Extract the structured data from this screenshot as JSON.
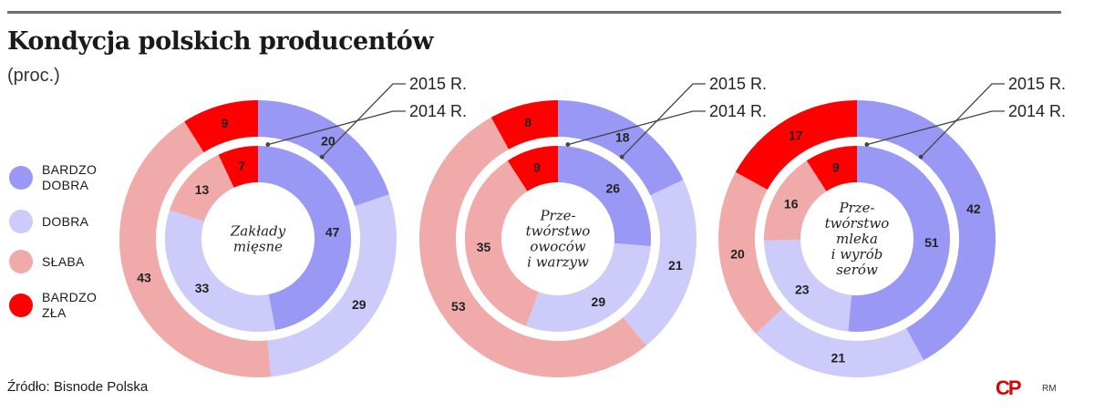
{
  "header": {
    "title": "Kondycja polskich producentów",
    "subtitle": "(proc.)"
  },
  "legend": [
    {
      "label_lines": [
        "BARDZO",
        "DOBRA"
      ],
      "color": "#9a98f5"
    },
    {
      "label_lines": [
        "DOBRA"
      ],
      "color": "#cccbf9"
    },
    {
      "label_lines": [
        "SŁABA"
      ],
      "color": "#f0aaaa"
    },
    {
      "label_lines": [
        "BARDZO",
        "ZŁA"
      ],
      "color": "#ff0000"
    }
  ],
  "footer": {
    "source": "Źródło: Bisnode Polska",
    "logo": "CP",
    "credit": "RM"
  },
  "chart_data": [
    {
      "type": "donut",
      "center_label": [
        "Zakłady",
        "mięsne"
      ],
      "categories": [
        "BARDZO DOBRA",
        "DOBRA",
        "SŁABA",
        "BARDZO ZŁA"
      ],
      "series": [
        {
          "name": "2015 R.",
          "ring": "outer",
          "values": [
            20,
            29,
            43,
            9
          ]
        },
        {
          "name": "2014 R.",
          "ring": "inner",
          "values": [
            47,
            33,
            13,
            7
          ]
        }
      ]
    },
    {
      "type": "donut",
      "center_label": [
        "Prze-",
        "twórstwo",
        "owoców",
        "i warzyw"
      ],
      "categories": [
        "BARDZO DOBRA",
        "DOBRA",
        "SŁABA",
        "BARDZO ZŁA"
      ],
      "series": [
        {
          "name": "2015 R.",
          "ring": "outer",
          "values": [
            18,
            21,
            53,
            8
          ]
        },
        {
          "name": "2014 R.",
          "ring": "inner",
          "values": [
            26,
            29,
            35,
            9
          ]
        }
      ]
    },
    {
      "type": "donut",
      "center_label": [
        "Prze-",
        "twórstwo",
        "mleka",
        "i wyrób",
        "serów"
      ],
      "categories": [
        "BARDZO DOBRA",
        "DOBRA",
        "SŁABA",
        "BARDZO ZŁA"
      ],
      "series": [
        {
          "name": "2015 R.",
          "ring": "outer",
          "values": [
            42,
            21,
            20,
            17
          ]
        },
        {
          "name": "2014 R.",
          "ring": "inner",
          "values": [
            51,
            23,
            16,
            9
          ]
        }
      ]
    }
  ]
}
